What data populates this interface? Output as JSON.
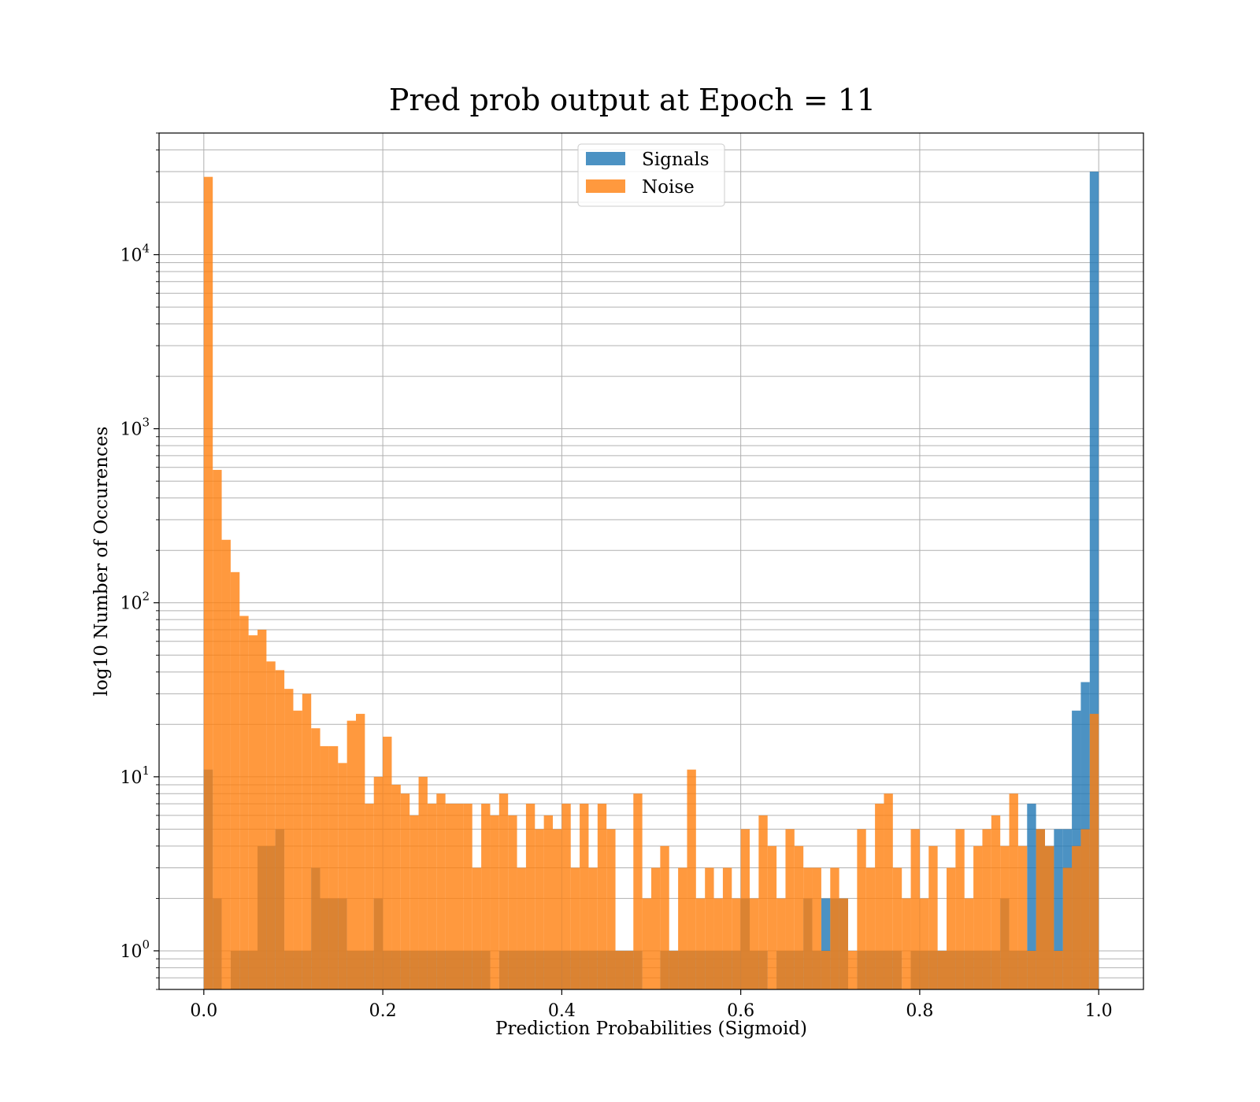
{
  "chart_data": {
    "type": "bar",
    "title": "Pred prob output at Epoch = 11",
    "xlabel": "Prediction Probabilities (Sigmoid)",
    "ylabel": "log10 Number of Occurences",
    "xlim": [
      -0.05,
      1.05
    ],
    "ylim": [
      0.6,
      50000
    ],
    "yscale": "log",
    "grid": true,
    "legend_position": "top-center",
    "x_ticks": [
      "0.0",
      "0.2",
      "0.4",
      "0.6",
      "0.8",
      "1.0"
    ],
    "y_ticks": [
      {
        "base": "10",
        "exp": "0",
        "value": 1
      },
      {
        "base": "10",
        "exp": "1",
        "value": 10
      },
      {
        "base": "10",
        "exp": "2",
        "value": 100
      },
      {
        "base": "10",
        "exp": "3",
        "value": 1000
      },
      {
        "base": "10",
        "exp": "4",
        "value": 10000
      }
    ],
    "bin_edges": {
      "start": 0.0,
      "end": 1.0,
      "count": 100
    },
    "series": [
      {
        "name": "Signals",
        "color": "#1f77b4",
        "opacity": 0.8,
        "values": [
          11,
          2,
          0,
          1,
          1,
          1,
          4,
          4,
          5,
          1,
          1,
          1,
          3,
          2,
          2,
          2,
          1,
          1,
          1,
          2,
          1,
          1,
          1,
          1,
          1,
          1,
          1,
          1,
          1,
          1,
          1,
          1,
          0,
          1,
          1,
          1,
          1,
          1,
          1,
          1,
          1,
          1,
          1,
          1,
          1,
          1,
          1,
          1,
          1,
          0,
          0,
          1,
          1,
          1,
          1,
          1,
          1,
          1,
          1,
          1,
          2,
          1,
          1,
          0,
          1,
          1,
          1,
          2,
          1,
          2,
          2,
          2,
          0,
          1,
          1,
          1,
          1,
          1,
          0,
          1,
          1,
          1,
          1,
          1,
          1,
          1,
          1,
          1,
          1,
          2,
          1,
          1,
          7,
          5,
          4,
          5,
          5,
          24,
          35,
          30000
        ]
      },
      {
        "name": "Noise",
        "color": "#ff7f0e",
        "opacity": 0.8,
        "values": [
          28000,
          580,
          230,
          150,
          84,
          65,
          70,
          46,
          41,
          32,
          24,
          30,
          19,
          15,
          15,
          12,
          21,
          23,
          7,
          10,
          17,
          9,
          8,
          6,
          10,
          7,
          8,
          7,
          7,
          7,
          3,
          7,
          6,
          8,
          6,
          3,
          7,
          5,
          6,
          5,
          7,
          3,
          7,
          3,
          7,
          5,
          1,
          1,
          8,
          2,
          3,
          4,
          1,
          3,
          11,
          2,
          3,
          2,
          3,
          2,
          5,
          2,
          6,
          4,
          2,
          5,
          4,
          3,
          3,
          1,
          3,
          2,
          1,
          5,
          3,
          7,
          8,
          3,
          2,
          5,
          2,
          4,
          1,
          3,
          5,
          2,
          4,
          5,
          6,
          4,
          8,
          4,
          1,
          5,
          4,
          1,
          3,
          4,
          5,
          23
        ]
      }
    ]
  }
}
